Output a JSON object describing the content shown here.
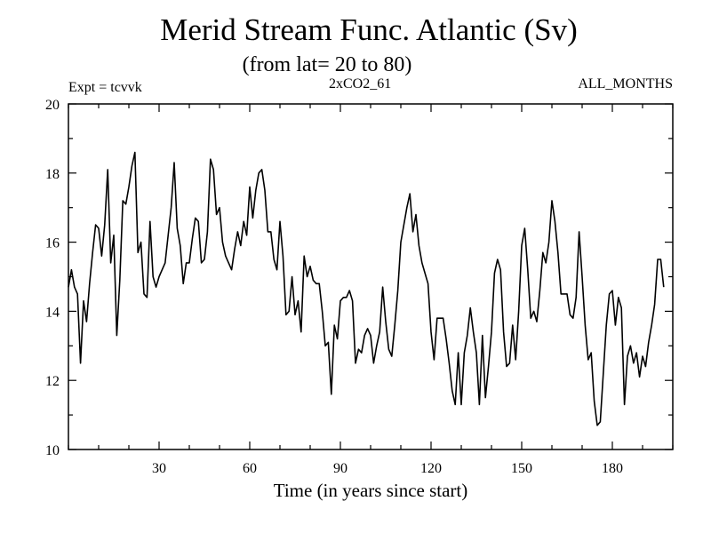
{
  "header": {
    "title": "Merid Stream Func. Atlantic (Sv)",
    "subtitle": "(from lat= 20 to 80)",
    "expt": "Expt = tcvvk",
    "run": "2xCO2_61",
    "period": "ALL_MONTHS"
  },
  "chart_data": {
    "type": "line",
    "title": "Merid Stream Func. Atlantic (Sv)",
    "subtitle": "(from lat= 20 to 80)",
    "xlabel": "Time (in years since start)",
    "ylabel": "",
    "xlim": [
      0,
      200
    ],
    "ylim": [
      10,
      20
    ],
    "xticks": [
      30,
      60,
      90,
      120,
      150,
      180
    ],
    "yticks": [
      10,
      12,
      14,
      16,
      18,
      20
    ],
    "grid": false,
    "series": [
      {
        "values": [
          [
            0,
            14.7
          ],
          [
            1,
            15.2
          ],
          [
            2,
            14.7
          ],
          [
            3,
            14.5
          ],
          [
            4,
            12.5
          ],
          [
            5,
            14.3
          ],
          [
            6,
            13.7
          ],
          [
            7,
            14.8
          ],
          [
            8,
            15.7
          ],
          [
            9,
            16.5
          ],
          [
            10,
            16.4
          ],
          [
            11,
            15.6
          ],
          [
            12,
            16.5
          ],
          [
            13,
            18.1
          ],
          [
            14,
            15.4
          ],
          [
            15,
            16.2
          ],
          [
            16,
            13.3
          ],
          [
            17,
            14.9
          ],
          [
            18,
            17.2
          ],
          [
            19,
            17.1
          ],
          [
            20,
            17.6
          ],
          [
            21,
            18.2
          ],
          [
            22,
            18.6
          ],
          [
            23,
            15.7
          ],
          [
            24,
            16.0
          ],
          [
            25,
            14.5
          ],
          [
            26,
            14.4
          ],
          [
            27,
            16.6
          ],
          [
            28,
            15.0
          ],
          [
            29,
            14.7
          ],
          [
            30,
            15.0
          ],
          [
            31,
            15.2
          ],
          [
            32,
            15.4
          ],
          [
            33,
            16.2
          ],
          [
            34,
            17.0
          ],
          [
            35,
            18.3
          ],
          [
            36,
            16.4
          ],
          [
            37,
            15.9
          ],
          [
            38,
            14.8
          ],
          [
            39,
            15.4
          ],
          [
            40,
            15.4
          ],
          [
            41,
            16.1
          ],
          [
            42,
            16.7
          ],
          [
            43,
            16.6
          ],
          [
            44,
            15.4
          ],
          [
            45,
            15.5
          ],
          [
            46,
            16.3
          ],
          [
            47,
            18.4
          ],
          [
            48,
            18.1
          ],
          [
            49,
            16.8
          ],
          [
            50,
            17.0
          ],
          [
            51,
            16.0
          ],
          [
            52,
            15.6
          ],
          [
            53,
            15.4
          ],
          [
            54,
            15.2
          ],
          [
            55,
            15.8
          ],
          [
            56,
            16.3
          ],
          [
            57,
            15.9
          ],
          [
            58,
            16.6
          ],
          [
            59,
            16.2
          ],
          [
            60,
            17.6
          ],
          [
            61,
            16.7
          ],
          [
            62,
            17.5
          ],
          [
            63,
            18.0
          ],
          [
            64,
            18.1
          ],
          [
            65,
            17.5
          ],
          [
            66,
            16.3
          ],
          [
            67,
            16.3
          ],
          [
            68,
            15.5
          ],
          [
            69,
            15.2
          ],
          [
            70,
            16.6
          ],
          [
            71,
            15.6
          ],
          [
            72,
            13.9
          ],
          [
            73,
            14.0
          ],
          [
            74,
            15.0
          ],
          [
            75,
            13.9
          ],
          [
            76,
            14.3
          ],
          [
            77,
            13.4
          ],
          [
            78,
            15.6
          ],
          [
            79,
            15.0
          ],
          [
            80,
            15.3
          ],
          [
            81,
            14.9
          ],
          [
            82,
            14.8
          ],
          [
            83,
            14.8
          ],
          [
            84,
            14.0
          ],
          [
            85,
            13.0
          ],
          [
            86,
            13.1
          ],
          [
            87,
            11.6
          ],
          [
            88,
            13.6
          ],
          [
            89,
            13.2
          ],
          [
            90,
            14.3
          ],
          [
            91,
            14.4
          ],
          [
            92,
            14.4
          ],
          [
            93,
            14.6
          ],
          [
            94,
            14.3
          ],
          [
            95,
            12.5
          ],
          [
            96,
            12.9
          ],
          [
            97,
            12.8
          ],
          [
            98,
            13.3
          ],
          [
            99,
            13.5
          ],
          [
            100,
            13.3
          ],
          [
            101,
            12.5
          ],
          [
            102,
            13.0
          ],
          [
            103,
            13.4
          ],
          [
            104,
            14.7
          ],
          [
            105,
            13.7
          ],
          [
            106,
            12.9
          ],
          [
            107,
            12.7
          ],
          [
            108,
            13.6
          ],
          [
            109,
            14.6
          ],
          [
            110,
            16.0
          ],
          [
            111,
            16.5
          ],
          [
            112,
            17.0
          ],
          [
            113,
            17.4
          ],
          [
            114,
            16.3
          ],
          [
            115,
            16.8
          ],
          [
            116,
            15.9
          ],
          [
            117,
            15.4
          ],
          [
            118,
            15.1
          ],
          [
            119,
            14.8
          ],
          [
            120,
            13.4
          ],
          [
            121,
            12.6
          ],
          [
            122,
            13.8
          ],
          [
            123,
            13.8
          ],
          [
            124,
            13.8
          ],
          [
            125,
            13.2
          ],
          [
            126,
            12.5
          ],
          [
            127,
            11.7
          ],
          [
            128,
            11.3
          ],
          [
            129,
            12.8
          ],
          [
            130,
            11.3
          ],
          [
            131,
            12.8
          ],
          [
            132,
            13.3
          ],
          [
            133,
            14.1
          ],
          [
            134,
            13.4
          ],
          [
            135,
            12.8
          ],
          [
            136,
            11.3
          ],
          [
            137,
            13.3
          ],
          [
            138,
            11.5
          ],
          [
            139,
            12.4
          ],
          [
            140,
            13.4
          ],
          [
            141,
            15.1
          ],
          [
            142,
            15.5
          ],
          [
            143,
            15.2
          ],
          [
            144,
            13.4
          ],
          [
            145,
            12.4
          ],
          [
            146,
            12.5
          ],
          [
            147,
            13.6
          ],
          [
            148,
            12.6
          ],
          [
            149,
            14.0
          ],
          [
            150,
            15.9
          ],
          [
            151,
            16.4
          ],
          [
            152,
            15.2
          ],
          [
            153,
            13.8
          ],
          [
            154,
            14.0
          ],
          [
            155,
            13.7
          ],
          [
            156,
            14.6
          ],
          [
            157,
            15.7
          ],
          [
            158,
            15.4
          ],
          [
            159,
            16.0
          ],
          [
            160,
            17.2
          ],
          [
            161,
            16.6
          ],
          [
            162,
            15.7
          ],
          [
            163,
            14.5
          ],
          [
            164,
            14.5
          ],
          [
            165,
            14.5
          ],
          [
            166,
            13.9
          ],
          [
            167,
            13.8
          ],
          [
            168,
            14.4
          ],
          [
            169,
            16.3
          ],
          [
            170,
            15.0
          ],
          [
            171,
            13.6
          ],
          [
            172,
            12.6
          ],
          [
            173,
            12.8
          ],
          [
            174,
            11.4
          ],
          [
            175,
            10.7
          ],
          [
            176,
            10.8
          ],
          [
            177,
            12.2
          ],
          [
            178,
            13.6
          ],
          [
            179,
            14.5
          ],
          [
            180,
            14.6
          ],
          [
            181,
            13.6
          ],
          [
            182,
            14.4
          ],
          [
            183,
            14.1
          ],
          [
            184,
            11.3
          ],
          [
            185,
            12.7
          ],
          [
            186,
            13.0
          ],
          [
            187,
            12.5
          ],
          [
            188,
            12.8
          ],
          [
            189,
            12.1
          ],
          [
            190,
            12.7
          ],
          [
            191,
            12.4
          ],
          [
            192,
            13.1
          ],
          [
            193,
            13.6
          ],
          [
            194,
            14.2
          ],
          [
            195,
            15.5
          ],
          [
            196,
            15.5
          ],
          [
            197,
            14.7
          ]
        ]
      }
    ]
  }
}
